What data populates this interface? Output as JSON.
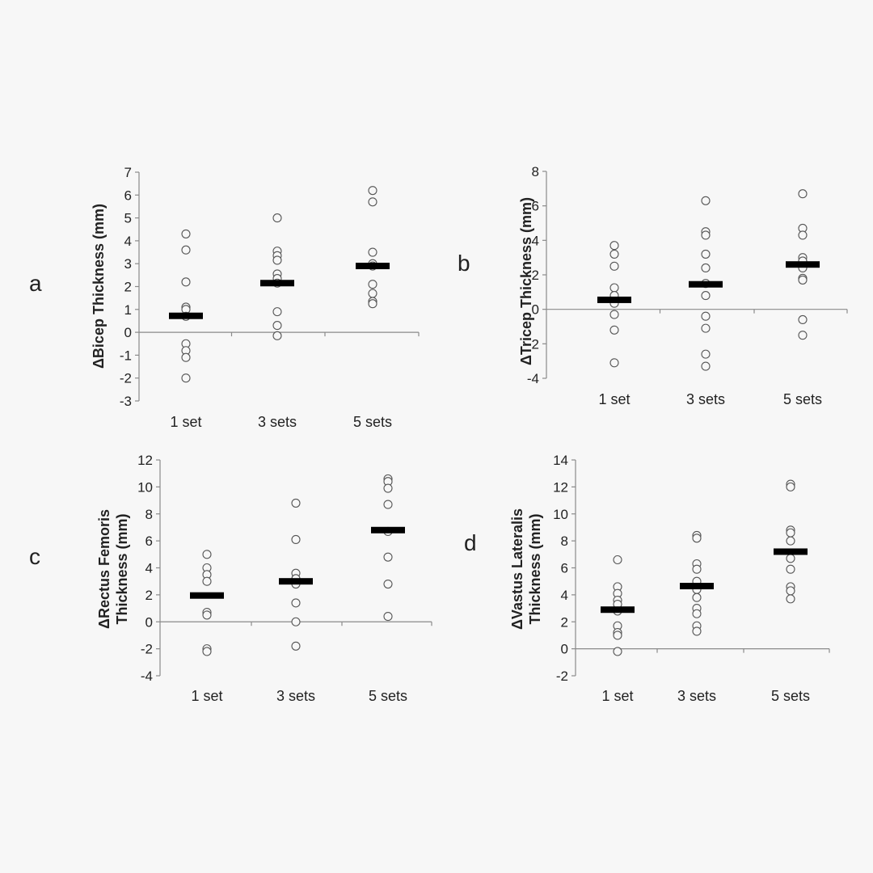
{
  "chart_data": [
    {
      "type": "scatter",
      "panel_label": "a",
      "ylabel": "ΔBicep Thickness (mm)",
      "ylim": [
        -3,
        7
      ],
      "yticks": [
        -3,
        -2,
        -1,
        0,
        1,
        2,
        3,
        4,
        5,
        6,
        7
      ],
      "yticks_labels": [
        "-3",
        "-2",
        "-1",
        "0",
        "1",
        "2",
        "3",
        "4",
        "5",
        "6",
        "7"
      ],
      "categories": [
        "1 set",
        "3 sets",
        "5 sets"
      ],
      "groups": [
        {
          "mean": 0.72,
          "points": [
            4.3,
            3.6,
            2.2,
            1.1,
            1.0,
            0.7,
            -0.5,
            -0.8,
            -1.1,
            -2.0
          ]
        },
        {
          "mean": 2.15,
          "points": [
            5.0,
            3.55,
            3.35,
            3.15,
            2.55,
            2.35,
            2.15,
            0.9,
            0.3,
            -0.15
          ]
        },
        {
          "mean": 2.9,
          "points": [
            6.2,
            5.7,
            3.5,
            3.0,
            2.9,
            2.1,
            1.7,
            1.35,
            1.25
          ]
        }
      ],
      "grid": false,
      "legend": "none"
    },
    {
      "type": "scatter",
      "panel_label": "b",
      "ylabel": "ΔTricep Thickness (mm)",
      "ylim": [
        -4,
        8
      ],
      "yticks": [
        -4,
        -2,
        0,
        2,
        4,
        6,
        8
      ],
      "yticks_labels": [
        "-4",
        "-2",
        "0",
        "2",
        "4",
        "6",
        "8"
      ],
      "categories": [
        "1 set",
        "3 sets",
        "5 sets"
      ],
      "groups": [
        {
          "mean": 0.55,
          "points": [
            3.7,
            3.2,
            2.5,
            1.25,
            0.8,
            0.35,
            -0.3,
            -1.2,
            -3.1
          ]
        },
        {
          "mean": 1.45,
          "points": [
            6.3,
            4.5,
            4.3,
            3.2,
            2.4,
            1.5,
            0.8,
            -0.4,
            -1.1,
            -2.6,
            -3.3
          ]
        },
        {
          "mean": 2.6,
          "points": [
            6.7,
            4.7,
            4.3,
            3.0,
            2.8,
            2.4,
            1.8,
            1.7,
            -0.6,
            -1.5
          ]
        }
      ],
      "grid": false,
      "legend": "none"
    },
    {
      "type": "scatter",
      "panel_label": "c",
      "ylabel_lines": [
        "ΔRectus Femoris",
        "Thickness (mm)"
      ],
      "ylim": [
        -4,
        12
      ],
      "yticks": [
        -4,
        -2,
        0,
        2,
        4,
        6,
        8,
        10,
        12
      ],
      "yticks_labels": [
        "-4",
        "-2",
        "0",
        "2",
        "4",
        "6",
        "8",
        "10",
        "12"
      ],
      "categories": [
        "1 set",
        "3 sets",
        "5 sets"
      ],
      "groups": [
        {
          "mean": 1.95,
          "points": [
            5.0,
            4.0,
            3.5,
            3.0,
            0.7,
            0.5,
            -2.0,
            -2.2
          ]
        },
        {
          "mean": 3.0,
          "points": [
            8.8,
            6.1,
            3.6,
            3.2,
            2.8,
            1.4,
            0.0,
            -1.8
          ]
        },
        {
          "mean": 6.8,
          "points": [
            10.6,
            10.4,
            9.9,
            8.7,
            6.7,
            4.8,
            2.8,
            0.4
          ]
        }
      ],
      "grid": false,
      "legend": "none"
    },
    {
      "type": "scatter",
      "panel_label": "d",
      "ylabel_lines": [
        "ΔVastus Lateralis",
        "Thickness (mm)"
      ],
      "ylim": [
        -2,
        14
      ],
      "yticks": [
        -2,
        0,
        2,
        4,
        6,
        8,
        10,
        12,
        14
      ],
      "yticks_labels": [
        "-2",
        "0",
        "2",
        "4",
        "6",
        "8",
        "10",
        "12",
        "14"
      ],
      "categories": [
        "1 set",
        "3 sets",
        "5 sets"
      ],
      "groups": [
        {
          "mean": 2.9,
          "points": [
            6.6,
            4.6,
            4.1,
            3.6,
            3.3,
            2.8,
            1.7,
            1.2,
            1.0,
            -0.2
          ]
        },
        {
          "mean": 4.65,
          "points": [
            8.4,
            8.2,
            6.3,
            5.9,
            5.0,
            4.4,
            3.8,
            3.0,
            2.6,
            1.7,
            1.3
          ]
        },
        {
          "mean": 7.2,
          "points": [
            12.2,
            12.0,
            8.8,
            8.6,
            8.0,
            6.7,
            5.9,
            4.6,
            4.3,
            3.7
          ]
        }
      ],
      "grid": false,
      "legend": "none"
    }
  ]
}
